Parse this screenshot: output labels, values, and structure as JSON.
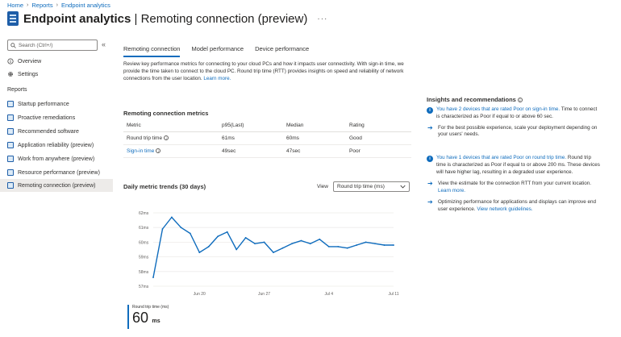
{
  "breadcrumb": [
    "Home",
    "Reports",
    "Endpoint analytics"
  ],
  "page": {
    "title_bold": "Endpoint analytics",
    "title_rest": " | Remoting connection (preview)",
    "more": "···"
  },
  "sidebar": {
    "search_placeholder": "Search (Ctrl+/)",
    "collapse": "«",
    "overview": "Overview",
    "settings": "Settings",
    "reports_label": "Reports",
    "reports": [
      "Startup performance",
      "Proactive remediations",
      "Recommended software",
      "Application reliability (preview)",
      "Work from anywhere (preview)",
      "Resource performance (preview)",
      "Remoting connection (preview)"
    ],
    "selected_index": 6
  },
  "tabs": [
    "Remoting connection",
    "Model performance",
    "Device performance"
  ],
  "description": "Review key performance metrics for connecting to your cloud PCs and how it impacts user connectivity. With sign-in time, we provide the time taken to connect to the cloud PC. Round trip time (RTT) provides insights on speed and reliability of network connections from the user location.",
  "description_link": "Learn more.",
  "metrics": {
    "title": "Remoting connection metrics",
    "headers": [
      "Metric",
      "p95(Last)",
      "Median",
      "Rating"
    ],
    "rows": [
      {
        "metric": "Round trip time",
        "p95": "61ms",
        "median": "60ms",
        "rating": "Good"
      },
      {
        "metric": "Sign-in time",
        "p95": "49sec",
        "median": "47sec",
        "rating": "Poor"
      }
    ]
  },
  "trends": {
    "title": "Daily metric trends (30 days)",
    "view_label": "View",
    "view_value": "Round trip time (ms)"
  },
  "chart_data": {
    "type": "line",
    "series": [
      {
        "values": [
          57.6,
          60.9,
          61.7,
          61.0,
          60.6,
          59.3,
          59.7,
          60.4,
          60.7,
          59.5,
          60.3,
          59.9,
          60.0,
          59.3,
          59.6,
          59.9,
          60.1,
          59.9,
          60.2,
          59.7,
          59.7,
          59.6,
          59.8,
          60.0,
          59.9,
          59.8,
          59.8
        ]
      }
    ],
    "x_ticks": [
      "Jun 20",
      "Jun 27",
      "Jul 4",
      "Jul 11"
    ],
    "x_tick_positions": [
      5,
      12,
      19,
      26
    ],
    "y_ticks": [
      "62ms",
      "61ms",
      "60ms",
      "59ms",
      "58ms",
      "57ms"
    ],
    "ylim": [
      57,
      62
    ],
    "grid": true,
    "legend": {
      "label": "Round trip time (ms)",
      "value": "60",
      "unit": "ms"
    },
    "color": "#0f6cbd"
  },
  "insights": {
    "title": "Insights and recommendations",
    "items": [
      {
        "pre": "You have 2 devices that are rated Poor on sign-in time.",
        "post": " Time to connect is characterized as Poor if equal to or above 60 sec.",
        "recs": [
          {
            "text": "For the best possible experience, scale your deployment depending on your users' needs.",
            "link": ""
          }
        ]
      },
      {
        "pre": "You have 1 devices that are rated Poor on round trip time.",
        "post": " Round trip time is characterized as Poor if equal to or above 200 ms. These devices will have higher lag, resulting in a degraded user experience.",
        "recs": [
          {
            "text": "View the estimate for the connection RTT from your current location. ",
            "link": "Learn more."
          },
          {
            "text": "Optimizing performance for applications and displays can improve end user experience. ",
            "link": "View network guidelines."
          }
        ]
      }
    ]
  }
}
